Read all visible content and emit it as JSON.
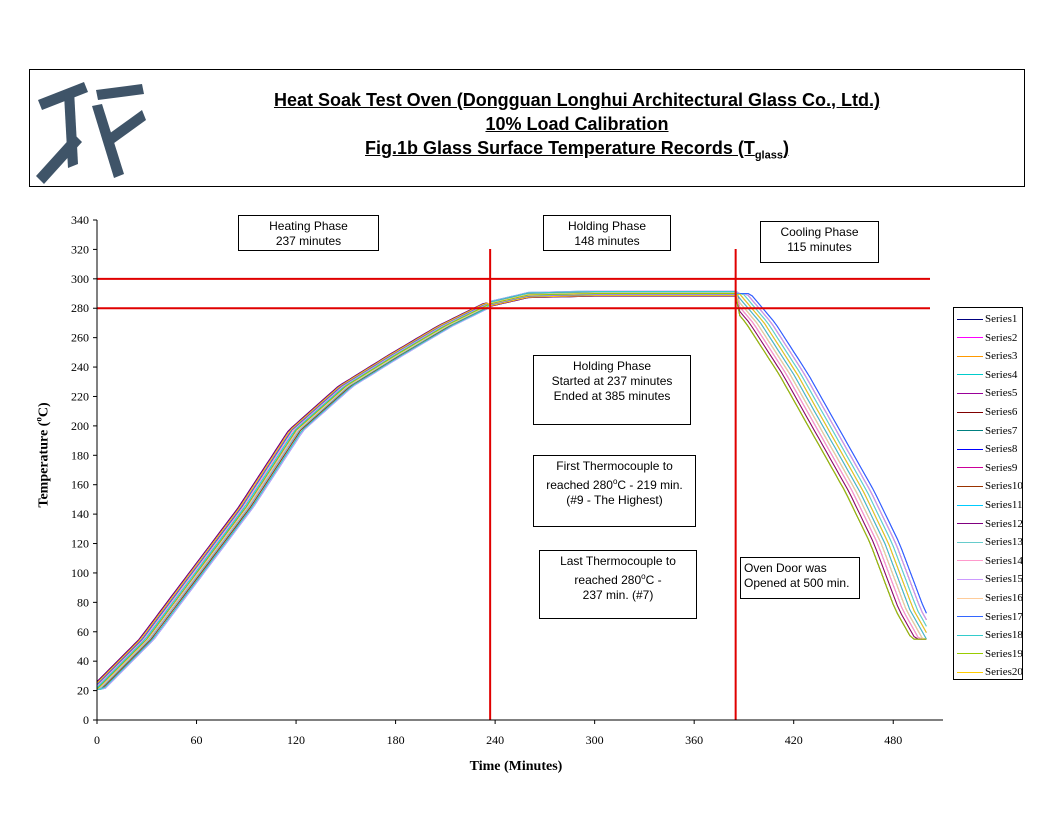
{
  "header": {
    "line1": "Heat Soak Test Oven (Dongguan Longhui Architectural Glass Co., Ltd.)",
    "line2": "10% Load Calibration",
    "line3_main": "Fig.1b Glass Surface Temperature Records (T",
    "line3_sub": "glass",
    "line3_end": ")",
    "logo_color": "#3f5468"
  },
  "chart_data": {
    "type": "line",
    "xlabel": "Time (Minutes)",
    "ylabel": "Temperature (°C)",
    "ylabel_main": "Temperature (",
    "ylabel_deg": "o",
    "ylabel_end": "C)",
    "xlim": [
      0,
      510
    ],
    "ylim": [
      0,
      340
    ],
    "xticks": [
      0,
      60,
      120,
      180,
      240,
      300,
      360,
      420,
      480
    ],
    "yticks": [
      0,
      20,
      40,
      60,
      80,
      100,
      120,
      140,
      160,
      180,
      200,
      220,
      240,
      260,
      280,
      300,
      320,
      340
    ],
    "reference_lines": {
      "horizontal": [
        280,
        300
      ],
      "vertical": [
        237,
        385
      ],
      "color": "#e00000"
    },
    "series_count": 20,
    "series_colors": [
      "#000080",
      "#ff00ff",
      "#ff9900",
      "#00cccc",
      "#990099",
      "#800000",
      "#008080",
      "#0000ff",
      "#cc0099",
      "#993300",
      "#00ccff",
      "#800080",
      "#66cccc",
      "#ff99cc",
      "#cc99ff",
      "#ffcc99",
      "#3366ff",
      "#33cccc",
      "#99cc00",
      "#ffcc00"
    ],
    "series": [
      {
        "name": "Series1"
      },
      {
        "name": "Series2"
      },
      {
        "name": "Series3"
      },
      {
        "name": "Series4"
      },
      {
        "name": "Series5"
      },
      {
        "name": "Series6"
      },
      {
        "name": "Series7"
      },
      {
        "name": "Series8"
      },
      {
        "name": "Series9"
      },
      {
        "name": "Series10"
      },
      {
        "name": "Series11"
      },
      {
        "name": "Series12"
      },
      {
        "name": "Series13"
      },
      {
        "name": "Series14"
      },
      {
        "name": "Series15"
      },
      {
        "name": "Series16"
      },
      {
        "name": "Series17"
      },
      {
        "name": "Series18"
      },
      {
        "name": "Series19"
      },
      {
        "name": "Series20"
      }
    ],
    "profile_points": [
      [
        0,
        21
      ],
      [
        30,
        55
      ],
      [
        60,
        100
      ],
      [
        90,
        145
      ],
      [
        120,
        197
      ],
      [
        150,
        227
      ],
      [
        180,
        248
      ],
      [
        210,
        268
      ],
      [
        237,
        283
      ],
      [
        260,
        289
      ],
      [
        300,
        290
      ],
      [
        360,
        290
      ],
      [
        385,
        290
      ],
      [
        400,
        270
      ],
      [
        420,
        235
      ],
      [
        440,
        195
      ],
      [
        460,
        155
      ],
      [
        475,
        120
      ],
      [
        490,
        75
      ],
      [
        500,
        55
      ]
    ],
    "annotations": {
      "heating": [
        "Heating Phase",
        "237 minutes"
      ],
      "holding": [
        "Holding Phase",
        "148 minutes"
      ],
      "cooling": [
        "Cooling Phase",
        "115 minutes"
      ],
      "holding_detail": [
        "Holding Phase",
        "Started at 237 minutes",
        "Ended at 385 minutes"
      ],
      "first_tc_a": "First Thermocouple to",
      "first_tc_b": "reached 280",
      "first_tc_deg": "o",
      "first_tc_c": "C - 219 min.",
      "first_tc_d": "(#9 - The Highest)",
      "last_tc_a": "Last Thermocouple to",
      "last_tc_b": "reached 280",
      "last_tc_deg": "o",
      "last_tc_c": "C -",
      "last_tc_d": "237 min. (#7)",
      "door": [
        "Oven Door was",
        "Opened at 500 min."
      ]
    }
  }
}
